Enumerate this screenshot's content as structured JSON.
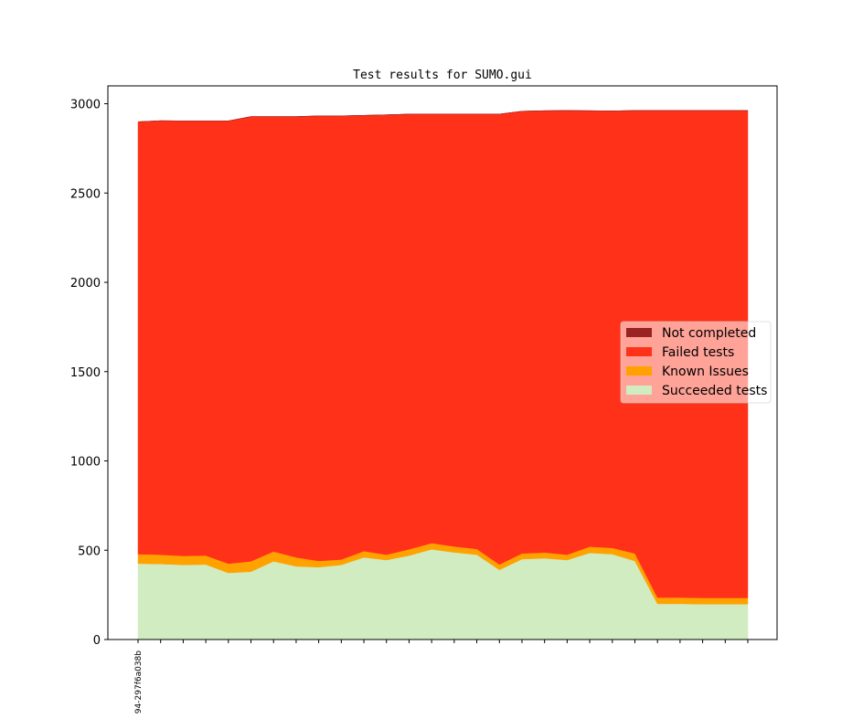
{
  "chart_data": {
    "type": "area",
    "stacked": true,
    "title": "Test results for SUMO.gui",
    "xlabel": "",
    "ylabel": "",
    "ylim": [
      0,
      3100
    ],
    "yticks": [
      0,
      500,
      1000,
      1500,
      2000,
      2500,
      3000
    ],
    "x_tick_labels": [
      "94-297f6a038b"
    ],
    "x_count": 28,
    "grid": false,
    "legend_position": "center-right",
    "series": [
      {
        "name": "Succeeded tests",
        "color": "#d0ecc0",
        "values": [
          425,
          423,
          418,
          420,
          373,
          380,
          438,
          410,
          405,
          418,
          460,
          445,
          470,
          505,
          488,
          475,
          390,
          450,
          455,
          445,
          485,
          478,
          440,
          200,
          200,
          198,
          198,
          198
        ]
      },
      {
        "name": "Known Issues",
        "color": "#ffa200",
        "values": [
          53,
          52,
          50,
          50,
          52,
          58,
          55,
          50,
          35,
          30,
          35,
          30,
          35,
          35,
          33,
          32,
          30,
          32,
          32,
          30,
          35,
          35,
          42,
          35,
          35,
          35,
          35,
          35
        ]
      },
      {
        "name": "Failed tests",
        "color": "#ff3219",
        "values": [
          2421,
          2430,
          2436,
          2434,
          2479,
          2490,
          2435,
          2468,
          2492,
          2484,
          2440,
          2463,
          2437,
          2402,
          2421,
          2435,
          2522,
          2476,
          2474,
          2487,
          2441,
          2447,
          2480,
          2727,
          2727,
          2729,
          2729,
          2729
        ]
      },
      {
        "name": "Not completed",
        "color": "#992222",
        "values": [
          0,
          0,
          0,
          0,
          0,
          0,
          0,
          0,
          0,
          0,
          0,
          0,
          0,
          0,
          0,
          0,
          0,
          0,
          0,
          0,
          0,
          0,
          0,
          0,
          0,
          0,
          0,
          0
        ]
      }
    ]
  }
}
